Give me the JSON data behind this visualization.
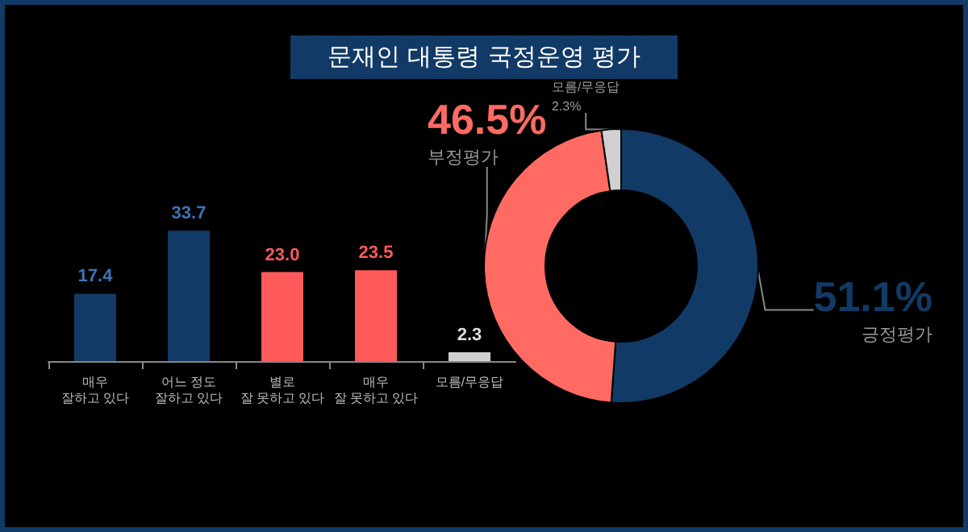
{
  "chart_data": [
    {
      "type": "bar",
      "title": "문재인 대통령 국정운영 평가",
      "categories": [
        "매우\n잘하고 있다",
        "어느 정도\n잘하고 있다",
        "별로\n잘 못하고 있다",
        "매우\n잘 못하고 있다",
        "모름/무응답"
      ],
      "values": [
        17.4,
        33.7,
        23.0,
        23.5,
        2.3
      ],
      "colors": [
        "#123a66",
        "#123a66",
        "#ff5a5a",
        "#ff5a5a",
        "#d0d0d0"
      ],
      "value_labels": [
        "17.4",
        "33.7",
        "23.0",
        "23.5",
        "2.3"
      ]
    },
    {
      "type": "donut",
      "categories": [
        "긍정평가",
        "부정평가",
        "모름/무응답"
      ],
      "values": [
        51.1,
        46.5,
        2.3
      ],
      "colors": [
        "#123a66",
        "#ff6b63",
        "#d0d0d0"
      ],
      "value_labels": [
        "51.1%",
        "46.5%",
        "2.3%"
      ]
    }
  ]
}
